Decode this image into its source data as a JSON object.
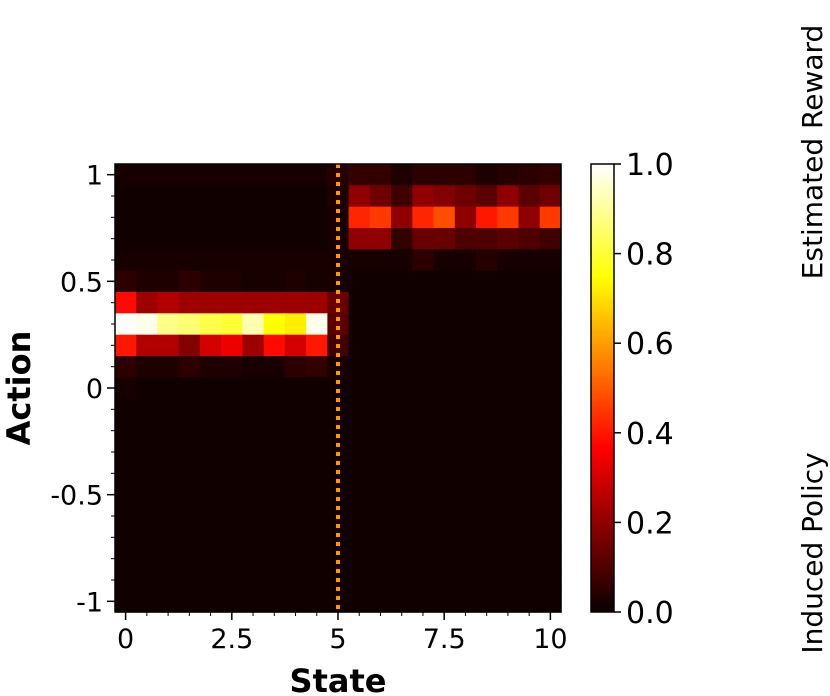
{
  "chart_data": {
    "type": "heatmap",
    "title": "",
    "xlabel": "State",
    "ylabel": "Action",
    "xlim": [
      -0.25,
      10.25
    ],
    "ylim": [
      -1.05,
      1.05
    ],
    "x_tick_values": [
      0,
      2.5,
      5,
      7.5,
      10
    ],
    "x_tick_labels": [
      "0",
      "2.5",
      "5",
      "7.5",
      "10"
    ],
    "y_tick_values": [
      1,
      0.5,
      0,
      -0.5,
      -1
    ],
    "y_tick_labels": [
      "1",
      "0.5",
      "0",
      "-0.5",
      "-1"
    ],
    "colormap": "hot",
    "colorbar": {
      "range": [
        0,
        1
      ],
      "tick_values": [
        1.0,
        0.8,
        0.6,
        0.4,
        0.2,
        0.0
      ],
      "tick_labels": [
        "1.0",
        "0.8",
        "0.6",
        "0.4",
        "0.2",
        "0.0"
      ]
    },
    "vline": {
      "x": 5,
      "color": "#ff9900",
      "style": "dotted"
    },
    "side_labels": [
      "Estimated Reward",
      "Induced Policy"
    ],
    "x_centers": [
      0,
      0.5,
      1,
      1.5,
      2,
      2.5,
      3,
      3.5,
      4,
      4.5,
      5,
      5.5,
      6,
      6.5,
      7,
      7.5,
      8,
      8.5,
      9,
      9.5,
      10
    ],
    "y_centers": [
      1.0,
      0.9,
      0.8,
      0.7,
      0.6,
      0.5,
      0.4,
      0.3,
      0.2,
      0.1,
      0.0,
      -0.1,
      -0.2,
      -0.3,
      -0.4,
      -0.5,
      -0.6,
      -0.7,
      -0.8,
      -0.9,
      -1.0
    ],
    "rows": [
      {
        "y": 1.0,
        "values": [
          0.02,
          0.02,
          0.02,
          0.02,
          0.02,
          0.02,
          0.02,
          0.02,
          0.02,
          0.02,
          0.04,
          0.06,
          0.06,
          0.03,
          0.05,
          0.05,
          0.05,
          0.03,
          0.04,
          0.05,
          0.06
        ]
      },
      {
        "y": 0.9,
        "values": [
          0.01,
          0.01,
          0.01,
          0.01,
          0.01,
          0.01,
          0.01,
          0.01,
          0.01,
          0.01,
          0.03,
          0.2,
          0.15,
          0.08,
          0.2,
          0.18,
          0.15,
          0.12,
          0.2,
          0.12,
          0.15
        ]
      },
      {
        "y": 0.8,
        "values": [
          0.01,
          0.01,
          0.01,
          0.01,
          0.01,
          0.01,
          0.01,
          0.01,
          0.01,
          0.01,
          0.02,
          0.42,
          0.45,
          0.2,
          0.42,
          0.48,
          0.2,
          0.4,
          0.45,
          0.2,
          0.45
        ]
      },
      {
        "y": 0.7,
        "values": [
          0.01,
          0.01,
          0.01,
          0.01,
          0.01,
          0.01,
          0.01,
          0.01,
          0.01,
          0.01,
          0.02,
          0.2,
          0.2,
          0.06,
          0.14,
          0.14,
          0.1,
          0.1,
          0.12,
          0.1,
          0.08
        ]
      },
      {
        "y": 0.6,
        "values": [
          0.02,
          0.02,
          0.02,
          0.02,
          0.02,
          0.02,
          0.02,
          0.02,
          0.02,
          0.02,
          0.02,
          0.02,
          0.02,
          0.02,
          0.05,
          0.02,
          0.02,
          0.04,
          0.02,
          0.02,
          0.02
        ]
      },
      {
        "y": 0.5,
        "values": [
          0.05,
          0.03,
          0.03,
          0.05,
          0.03,
          0.03,
          0.02,
          0.02,
          0.03,
          0.02,
          0.02,
          0.01,
          0.01,
          0.01,
          0.01,
          0.01,
          0.01,
          0.01,
          0.01,
          0.01,
          0.01
        ]
      },
      {
        "y": 0.4,
        "values": [
          0.38,
          0.22,
          0.25,
          0.22,
          0.22,
          0.22,
          0.22,
          0.22,
          0.22,
          0.22,
          0.14,
          0.01,
          0.01,
          0.01,
          0.01,
          0.01,
          0.01,
          0.01,
          0.01,
          0.01,
          0.01
        ]
      },
      {
        "y": 0.3,
        "values": [
          1.0,
          0.98,
          0.88,
          0.86,
          0.82,
          0.8,
          0.92,
          0.75,
          0.72,
          0.98,
          0.12,
          0.01,
          0.01,
          0.01,
          0.01,
          0.01,
          0.01,
          0.01,
          0.01,
          0.01,
          0.01
        ]
      },
      {
        "y": 0.2,
        "values": [
          0.4,
          0.25,
          0.25,
          0.18,
          0.3,
          0.34,
          0.22,
          0.38,
          0.3,
          0.4,
          0.08,
          0.01,
          0.01,
          0.01,
          0.01,
          0.01,
          0.01,
          0.01,
          0.01,
          0.01,
          0.01
        ]
      },
      {
        "y": 0.1,
        "values": [
          0.05,
          0.03,
          0.03,
          0.05,
          0.03,
          0.03,
          0.02,
          0.02,
          0.05,
          0.06,
          0.02,
          0.01,
          0.01,
          0.01,
          0.01,
          0.01,
          0.01,
          0.01,
          0.01,
          0.01,
          0.01
        ]
      },
      {
        "y": 0.0,
        "values": [
          0.02,
          0.01,
          0.01,
          0.01,
          0.01,
          0.01,
          0.01,
          0.01,
          0.01,
          0.01,
          0.01,
          0.01,
          0.01,
          0.01,
          0.01,
          0.01,
          0.01,
          0.01,
          0.01,
          0.01,
          0.01
        ]
      },
      {
        "y": -0.1,
        "values": [
          0.01,
          0.01,
          0.01,
          0.01,
          0.01,
          0.01,
          0.01,
          0.01,
          0.01,
          0.01,
          0.01,
          0.01,
          0.01,
          0.01,
          0.01,
          0.01,
          0.01,
          0.01,
          0.01,
          0.01,
          0.01
        ]
      },
      {
        "y": -0.2,
        "values": [
          0.01,
          0.01,
          0.01,
          0.01,
          0.01,
          0.01,
          0.01,
          0.01,
          0.01,
          0.01,
          0.01,
          0.01,
          0.01,
          0.01,
          0.01,
          0.01,
          0.01,
          0.01,
          0.01,
          0.01,
          0.01
        ]
      },
      {
        "y": -0.3,
        "values": [
          0.01,
          0.01,
          0.01,
          0.01,
          0.01,
          0.01,
          0.01,
          0.01,
          0.01,
          0.01,
          0.01,
          0.01,
          0.01,
          0.01,
          0.01,
          0.01,
          0.01,
          0.01,
          0.01,
          0.01,
          0.01
        ]
      },
      {
        "y": -0.4,
        "values": [
          0.01,
          0.01,
          0.01,
          0.01,
          0.01,
          0.01,
          0.01,
          0.01,
          0.01,
          0.01,
          0.01,
          0.01,
          0.01,
          0.01,
          0.01,
          0.01,
          0.01,
          0.01,
          0.01,
          0.01,
          0.01
        ]
      },
      {
        "y": -0.5,
        "values": [
          0.01,
          0.01,
          0.01,
          0.01,
          0.01,
          0.01,
          0.01,
          0.01,
          0.01,
          0.01,
          0.01,
          0.01,
          0.01,
          0.01,
          0.01,
          0.01,
          0.01,
          0.01,
          0.01,
          0.01,
          0.01
        ]
      },
      {
        "y": -0.6,
        "values": [
          0.01,
          0.01,
          0.01,
          0.01,
          0.01,
          0.01,
          0.01,
          0.01,
          0.01,
          0.01,
          0.01,
          0.01,
          0.01,
          0.01,
          0.01,
          0.01,
          0.01,
          0.01,
          0.01,
          0.01,
          0.01
        ]
      },
      {
        "y": -0.7,
        "values": [
          0.01,
          0.01,
          0.01,
          0.01,
          0.01,
          0.01,
          0.01,
          0.01,
          0.01,
          0.01,
          0.01,
          0.01,
          0.01,
          0.01,
          0.01,
          0.01,
          0.01,
          0.01,
          0.01,
          0.01,
          0.01
        ]
      },
      {
        "y": -0.8,
        "values": [
          0.01,
          0.01,
          0.01,
          0.01,
          0.01,
          0.01,
          0.01,
          0.01,
          0.01,
          0.01,
          0.01,
          0.01,
          0.01,
          0.01,
          0.01,
          0.01,
          0.01,
          0.01,
          0.01,
          0.01,
          0.01
        ]
      },
      {
        "y": -0.9,
        "values": [
          0.01,
          0.01,
          0.01,
          0.01,
          0.01,
          0.01,
          0.01,
          0.01,
          0.01,
          0.01,
          0.01,
          0.01,
          0.01,
          0.01,
          0.01,
          0.01,
          0.01,
          0.01,
          0.01,
          0.01,
          0.01
        ]
      },
      {
        "y": -1.0,
        "values": [
          0.01,
          0.01,
          0.01,
          0.01,
          0.01,
          0.01,
          0.01,
          0.01,
          0.01,
          0.01,
          0.01,
          0.01,
          0.01,
          0.01,
          0.01,
          0.01,
          0.01,
          0.01,
          0.01,
          0.01,
          0.01
        ]
      }
    ]
  }
}
